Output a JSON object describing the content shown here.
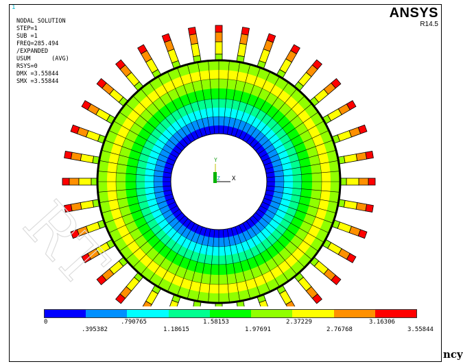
{
  "window_number": "1",
  "info_lines": [
    "NODAL SOLUTION",
    "",
    "STEP=1",
    "SUB =1",
    "FREQ=285.494",
    "/EXPANDED",
    "USUM      (AVG)",
    "RSYS=0",
    "DMX =3.55844",
    "SMX =3.55844"
  ],
  "brand": {
    "name": "ANSYS",
    "version": "R14.5"
  },
  "triad": {
    "y": "Y",
    "z": "Z",
    "x": "X"
  },
  "legend": {
    "colors": [
      "#0000ff",
      "#0090ff",
      "#00ffff",
      "#00ff90",
      "#00ff00",
      "#90ff00",
      "#ffff00",
      "#ff9000",
      "#ff0000"
    ],
    "top_labels": [
      "0",
      ".790765",
      "1.58153",
      "2.37229",
      "3.16306"
    ],
    "bottom_labels": [
      ".395382",
      "1.18615",
      "1.97691",
      "2.76768",
      "3.55844"
    ]
  },
  "trailing_text": "ncy",
  "watermark": "RT"
}
